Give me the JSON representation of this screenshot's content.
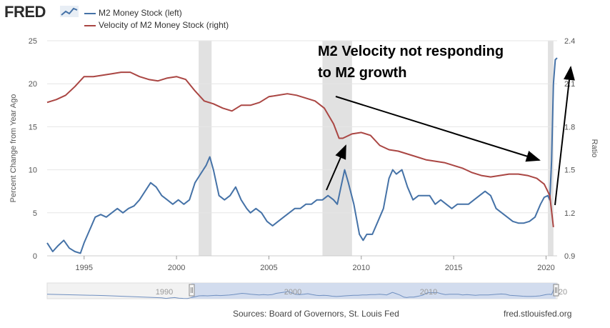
{
  "header": {
    "logo_text": "FRED",
    "logo_icon": "fred-chart-icon",
    "legend": [
      {
        "name": "M2 Money Stock (left)",
        "color": "#4572a7"
      },
      {
        "name": "Velocity of M2 Money Stock (right)",
        "color": "#aa4643"
      }
    ]
  },
  "footer": {
    "sources": "Sources: Board of Governors, St. Louis Fed",
    "site": "fred.stlouisfed.org"
  },
  "chart_data": {
    "type": "line",
    "ylabel": "Percent Change from Year Ago",
    "y2label": "Ratio",
    "xlim": [
      1993,
      2020.6
    ],
    "ylim": [
      0,
      25
    ],
    "y2lim": [
      0.9,
      2.4
    ],
    "x_ticks": [
      1995,
      2000,
      2005,
      2010,
      2015,
      2020
    ],
    "y_ticks": [
      0,
      5,
      10,
      15,
      20,
      25
    ],
    "y2_ticks": [
      "0.9",
      "1.2",
      "1.5",
      "1.8",
      "2.1",
      "2.4"
    ],
    "grid": "horizontal",
    "recessions": [
      [
        2001.2,
        2001.9
      ],
      [
        2007.9,
        2009.5
      ],
      [
        2020.1,
        2020.4
      ]
    ],
    "series": [
      {
        "name": "M2 Money Stock (left)",
        "axis": "left",
        "color": "#4572a7",
        "x": [
          1993.0,
          1993.3,
          1993.6,
          1993.9,
          1994.2,
          1994.5,
          1994.8,
          1995.0,
          1995.3,
          1995.6,
          1995.9,
          1996.2,
          1996.5,
          1996.8,
          1997.1,
          1997.4,
          1997.7,
          1998.0,
          1998.3,
          1998.6,
          1998.9,
          1999.2,
          1999.5,
          1999.8,
          2000.1,
          2000.4,
          2000.7,
          2001.0,
          2001.3,
          2001.6,
          2001.8,
          2002.0,
          2002.3,
          2002.6,
          2002.9,
          2003.2,
          2003.5,
          2003.8,
          2004.0,
          2004.3,
          2004.6,
          2004.9,
          2005.2,
          2005.5,
          2005.8,
          2006.1,
          2006.4,
          2006.7,
          2007.0,
          2007.3,
          2007.6,
          2007.9,
          2008.2,
          2008.5,
          2008.7,
          2008.9,
          2009.1,
          2009.3,
          2009.6,
          2009.9,
          2010.1,
          2010.3,
          2010.6,
          2010.9,
          2011.2,
          2011.5,
          2011.7,
          2011.9,
          2012.2,
          2012.5,
          2012.8,
          2013.1,
          2013.4,
          2013.7,
          2014.0,
          2014.3,
          2014.6,
          2014.9,
          2015.2,
          2015.5,
          2015.8,
          2016.1,
          2016.4,
          2016.7,
          2017.0,
          2017.3,
          2017.6,
          2017.9,
          2018.2,
          2018.5,
          2018.8,
          2019.1,
          2019.4,
          2019.7,
          2019.9,
          2020.1,
          2020.2,
          2020.3,
          2020.4,
          2020.5,
          2020.6
        ],
        "values": [
          1.5,
          0.5,
          1.2,
          1.8,
          0.9,
          0.5,
          0.3,
          1.5,
          3.0,
          4.5,
          4.8,
          4.5,
          5.0,
          5.5,
          5.0,
          5.5,
          5.8,
          6.5,
          7.5,
          8.5,
          8.0,
          7.0,
          6.5,
          6.0,
          6.5,
          6.0,
          6.5,
          8.5,
          9.5,
          10.5,
          11.5,
          10.0,
          7.0,
          6.5,
          7.0,
          8.0,
          6.5,
          5.5,
          5.0,
          5.5,
          5.0,
          4.0,
          3.5,
          4.0,
          4.5,
          5.0,
          5.5,
          5.5,
          6.0,
          6.0,
          6.5,
          6.5,
          7.0,
          6.5,
          6.0,
          8.0,
          10.0,
          8.5,
          6.0,
          2.5,
          1.8,
          2.5,
          2.5,
          4.0,
          5.5,
          9.0,
          10.0,
          9.5,
          10.0,
          8.0,
          6.5,
          7.0,
          7.0,
          7.0,
          6.0,
          6.5,
          6.0,
          5.5,
          6.0,
          6.0,
          6.0,
          6.5,
          7.0,
          7.5,
          7.0,
          5.5,
          5.0,
          4.5,
          4.0,
          3.8,
          3.8,
          4.0,
          4.5,
          6.0,
          6.8,
          7.0,
          6.5,
          11.0,
          20.0,
          22.8,
          23.0
        ]
      },
      {
        "name": "Velocity of M2 Money Stock (right)",
        "axis": "right",
        "color": "#aa4643",
        "x": [
          1993.0,
          1993.5,
          1994.0,
          1994.5,
          1995.0,
          1995.5,
          1996.0,
          1996.5,
          1997.0,
          1997.5,
          1998.0,
          1998.5,
          1999.0,
          1999.5,
          2000.0,
          2000.5,
          2001.0,
          2001.5,
          2002.0,
          2002.5,
          2003.0,
          2003.5,
          2004.0,
          2004.5,
          2005.0,
          2005.5,
          2006.0,
          2006.5,
          2007.0,
          2007.5,
          2008.0,
          2008.5,
          2008.8,
          2009.0,
          2009.5,
          2010.0,
          2010.5,
          2011.0,
          2011.5,
          2012.0,
          2012.5,
          2013.0,
          2013.5,
          2014.0,
          2014.5,
          2015.0,
          2015.5,
          2016.0,
          2016.5,
          2017.0,
          2017.5,
          2018.0,
          2018.5,
          2019.0,
          2019.5,
          2019.9,
          2020.2,
          2020.4
        ],
        "values": [
          1.97,
          1.99,
          2.02,
          2.08,
          2.15,
          2.15,
          2.16,
          2.17,
          2.18,
          2.18,
          2.15,
          2.13,
          2.12,
          2.14,
          2.15,
          2.13,
          2.05,
          1.98,
          1.96,
          1.93,
          1.91,
          1.95,
          1.95,
          1.97,
          2.01,
          2.02,
          2.03,
          2.02,
          2.0,
          1.98,
          1.93,
          1.82,
          1.72,
          1.72,
          1.75,
          1.76,
          1.74,
          1.67,
          1.64,
          1.63,
          1.61,
          1.59,
          1.57,
          1.56,
          1.55,
          1.53,
          1.51,
          1.48,
          1.46,
          1.45,
          1.46,
          1.47,
          1.47,
          1.46,
          1.44,
          1.4,
          1.32,
          1.1
        ]
      }
    ],
    "annotations": [
      {
        "text_lines": [
          "M2 Velocity not responding",
          "to M2 growth"
        ]
      }
    ],
    "navigator": {
      "x_ticks": [
        "1990",
        "2000",
        "2010",
        "20"
      ]
    }
  }
}
